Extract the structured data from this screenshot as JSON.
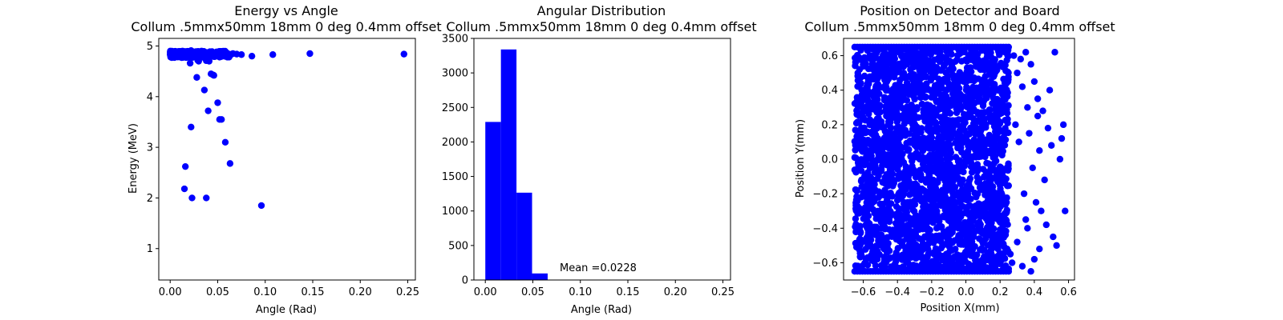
{
  "chart_data": [
    {
      "type": "scatter",
      "title": [
        "Energy vs Angle",
        "Collum .5mmx50mm 18mm 0 deg 0.4mm offset"
      ],
      "xlabel": "Angle (Rad)",
      "ylabel": "Energy (MeV)",
      "xlim": [
        -0.012,
        0.258
      ],
      "ylim": [
        0.38,
        5.15
      ],
      "xticks": [
        0.0,
        0.05,
        0.1,
        0.15,
        0.2,
        0.25
      ],
      "xtick_labels": [
        "0.00",
        "0.05",
        "0.10",
        "0.15",
        "0.20",
        "0.25"
      ],
      "yticks": [
        1,
        2,
        3,
        4,
        5
      ],
      "ytick_labels": [
        "1",
        "2",
        "3",
        "4",
        "5"
      ],
      "color": "#0000ff",
      "series": [
        {
          "x": [
            0.0,
            0.002,
            0.004,
            0.006,
            0.008,
            0.01,
            0.012,
            0.014,
            0.016,
            0.018,
            0.02,
            0.022,
            0.024,
            0.026,
            0.028,
            0.03,
            0.032,
            0.034,
            0.036,
            0.038,
            0.04,
            0.042,
            0.044,
            0.046,
            0.048,
            0.05,
            0.052,
            0.054,
            0.056,
            0.058,
            0.06,
            0.062,
            0.064,
            0.066,
            0.07,
            0.075,
            0.086,
            0.108,
            0.147,
            0.246,
            0.003,
            0.007,
            0.012,
            0.017,
            0.021,
            0.026,
            0.031,
            0.036,
            0.041,
            0.047,
            0.052,
            0.057,
            0.013,
            0.022,
            0.033,
            0.044,
            0.021,
            0.03,
            0.029,
            0.041,
            0.038,
            0.045,
            0.043,
            0.028,
            0.036,
            0.046,
            0.05,
            0.054,
            0.022,
            0.052,
            0.04,
            0.058,
            0.063,
            0.016,
            0.015,
            0.038,
            0.023,
            0.096
          ],
          "y": [
            4.84,
            4.83,
            4.85,
            4.82,
            4.86,
            4.84,
            4.83,
            4.86,
            4.82,
            4.85,
            4.87,
            4.83,
            4.84,
            4.86,
            4.82,
            4.85,
            4.84,
            4.83,
            4.87,
            4.82,
            4.85,
            4.84,
            4.86,
            4.83,
            4.85,
            4.82,
            4.84,
            4.86,
            4.83,
            4.85,
            4.82,
            4.84,
            4.83,
            4.85,
            4.84,
            4.83,
            4.8,
            4.83,
            4.85,
            4.84,
            4.78,
            4.79,
            4.77,
            4.8,
            4.78,
            4.79,
            4.77,
            4.8,
            4.78,
            4.79,
            4.78,
            4.8,
            4.9,
            4.91,
            4.9,
            4.89,
            4.66,
            4.7,
            4.72,
            4.7,
            4.71,
            4.43,
            4.45,
            4.38,
            4.13,
            4.42,
            3.88,
            3.55,
            3.4,
            3.55,
            3.72,
            3.1,
            2.68,
            2.62,
            2.18,
            2.0,
            2.0,
            1.85
          ],
          "note": "dense cluster near energy ~4.8 MeV"
        }
      ]
    },
    {
      "type": "bar",
      "title": [
        "Angular Distribution",
        "Collum .5mmx50mm 18mm 0 deg 0.4mm offset"
      ],
      "xlabel": "Angle (Rad)",
      "ylabel": "",
      "xlim": [
        -0.012,
        0.258
      ],
      "ylim": [
        0,
        3500
      ],
      "xticks": [
        0.0,
        0.05,
        0.1,
        0.15,
        0.2,
        0.25
      ],
      "xtick_labels": [
        "0.00",
        "0.05",
        "0.10",
        "0.15",
        "0.20",
        "0.25"
      ],
      "yticks": [
        0,
        500,
        1000,
        1500,
        2000,
        2500,
        3000,
        3500
      ],
      "ytick_labels": [
        "0",
        "500",
        "1000",
        "1500",
        "2000",
        "2500",
        "3000",
        "3500"
      ],
      "bin_edges": [
        0.0,
        0.0164,
        0.0328,
        0.0492,
        0.0656
      ],
      "values": [
        2290,
        3340,
        1265,
        95
      ],
      "color": "#0000ff",
      "annotation": {
        "text": "Mean =0.0228",
        "x": 0.08,
        "y": 100
      }
    },
    {
      "type": "scatter",
      "title": [
        "Position on Detector and Board",
        "Collum .5mmx50mm 18mm 0 deg 0.4mm offset"
      ],
      "xlabel": "Position X(mm)",
      "ylabel": "Position Y(mm)",
      "xlim": [
        -0.715,
        0.635
      ],
      "ylim": [
        -0.7,
        0.7
      ],
      "xticks": [
        -0.6,
        -0.4,
        -0.2,
        0.0,
        0.2,
        0.4,
        0.6
      ],
      "xtick_labels": [
        "−0.6",
        "−0.4",
        "−0.2",
        "0.0",
        "0.2",
        "0.4",
        "0.6"
      ],
      "yticks": [
        -0.6,
        -0.4,
        -0.2,
        0.0,
        0.2,
        0.4,
        0.6
      ],
      "ytick_labels": [
        "−0.6",
        "−0.4",
        "−0.2",
        "0.0",
        "0.2",
        "0.4",
        "0.6"
      ],
      "color": "#0000ff",
      "dense_region": {
        "x": [
          -0.65,
          0.25
        ],
        "y": [
          -0.64,
          0.64
        ]
      },
      "series": [
        {
          "x": [
            0.28,
            0.32,
            0.3,
            0.35,
            0.33,
            0.38,
            0.36,
            0.4,
            0.29,
            0.42,
            0.31,
            0.37,
            0.45,
            0.43,
            0.39,
            0.48,
            0.46,
            0.34,
            0.41,
            0.5,
            0.52,
            0.44,
            0.47,
            0.55,
            0.51,
            0.58,
            0.53,
            0.49,
            0.56,
            0.57,
            0.27,
            0.26,
            0.33,
            0.36,
            0.3,
            0.4,
            0.38,
            0.43,
            0.35,
            0.42
          ],
          "y": [
            0.6,
            0.58,
            0.5,
            0.62,
            0.42,
            0.55,
            0.3,
            0.45,
            0.2,
            0.35,
            0.1,
            0.15,
            0.28,
            0.05,
            -0.05,
            0.18,
            -0.12,
            -0.2,
            -0.25,
            0.08,
            0.62,
            -0.3,
            -0.38,
            0.0,
            -0.45,
            -0.3,
            -0.5,
            0.4,
            0.12,
            0.2,
            -0.6,
            -0.55,
            -0.62,
            -0.4,
            -0.48,
            -0.58,
            -0.65,
            -0.52,
            -0.35,
            0.25
          ],
          "note": "scattered points right of the dense block"
        }
      ]
    }
  ]
}
